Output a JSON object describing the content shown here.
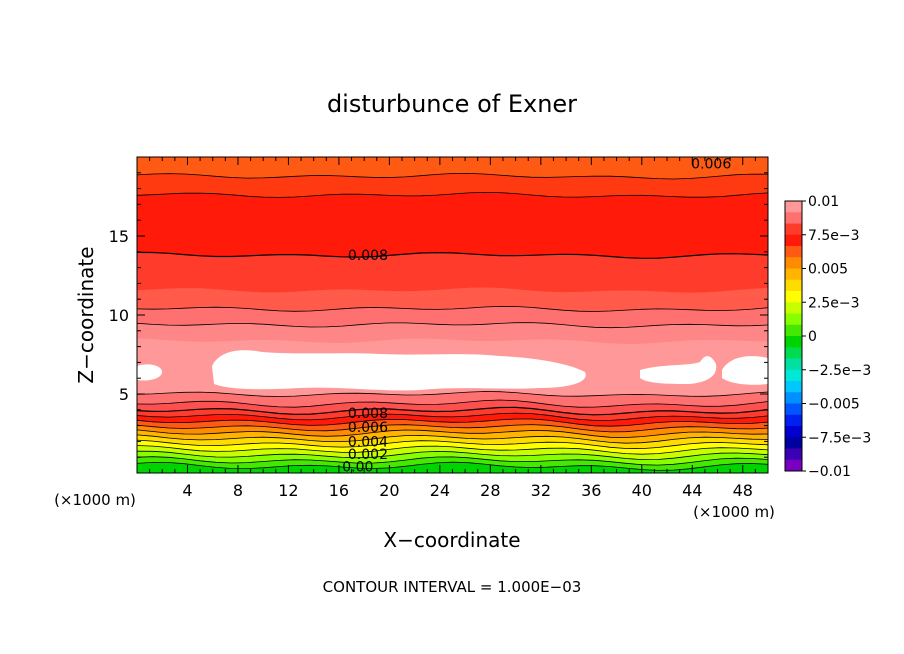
{
  "chart_data": {
    "type": "contour",
    "title": "disturbunce of Exner",
    "xlabel": "X−coordinate",
    "ylabel": "Z−coordinate",
    "x_unit_left": "(×1000 m)",
    "x_unit_right": "(×1000 m)",
    "xlim": [
      0,
      50
    ],
    "ylim": [
      0,
      20
    ],
    "x_ticks": [
      4,
      8,
      12,
      16,
      20,
      24,
      28,
      32,
      36,
      40,
      44,
      48
    ],
    "x_tick_labels": [
      "4",
      "8",
      "12",
      "16",
      "20",
      "24",
      "28",
      "32",
      "36",
      "40",
      "44",
      "48"
    ],
    "y_ticks": [
      5,
      10,
      15
    ],
    "y_tick_labels": [
      "5",
      "10",
      "15"
    ],
    "footer": "CONTOUR INTERVAL = 1.000E−03",
    "colorbar": {
      "labels": [
        "0.01",
        "7.5e−3",
        "0.005",
        "2.5e−3",
        "0",
        "−2.5e−3",
        "−0.005",
        "−7.5e−3",
        "−0.01"
      ],
      "colors": [
        "#ff9999",
        "#ff7070",
        "#ff3b2b",
        "#ff1a0a",
        "#ff5a14",
        "#ff8c00",
        "#ffb400",
        "#ffdc00",
        "#ffff00",
        "#c8ff00",
        "#88ff00",
        "#44e800",
        "#00d400",
        "#00dc50",
        "#00e0a0",
        "#00e8d8",
        "#00c8ff",
        "#0090ff",
        "#0055ff",
        "#0020f0",
        "#0000d0",
        "#0000a0",
        "#3c00b4",
        "#7a00c0"
      ]
    },
    "contour_labels": [
      {
        "text": "0.006",
        "x": 45.5,
        "z": 19.6
      },
      {
        "text": "0.008",
        "x": 18.3,
        "z": 13.8
      },
      {
        "text": "0.008",
        "x": 18.3,
        "z": 3.8
      },
      {
        "text": "0.006",
        "x": 18.3,
        "z": 2.9
      },
      {
        "text": "0.004",
        "x": 18.3,
        "z": 2.0
      },
      {
        "text": "0.002",
        "x": 18.3,
        "z": 1.2
      },
      {
        "text": "0.00",
        "x": 17.5,
        "z": 0.4
      }
    ]
  }
}
